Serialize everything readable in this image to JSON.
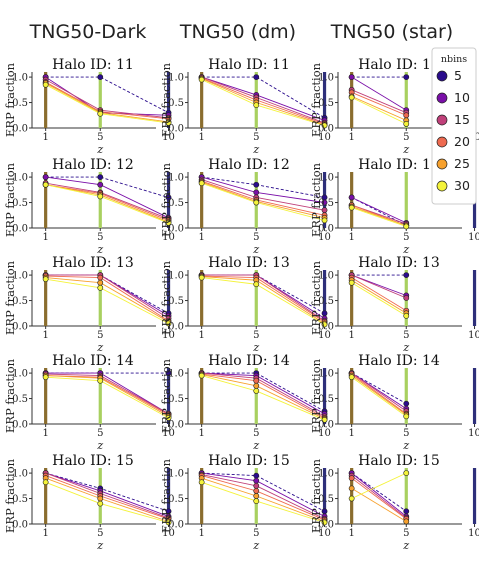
{
  "chart_data": {
    "type": "line",
    "columns": [
      "TNG50-Dark",
      "TNG50 (dm)",
      "TNG50 (star)"
    ],
    "rows": [
      "Halo ID: 11",
      "Halo ID: 12",
      "Halo ID: 13",
      "Halo ID: 14",
      "Halo ID: 15"
    ],
    "xlabel": "z",
    "ylabel": "ERP fraction",
    "xlim": [
      0,
      10.4
    ],
    "ylim": [
      0,
      1.1
    ],
    "xticks": [
      1,
      5,
      10
    ],
    "yticks": [
      0.0,
      0.5,
      1.0
    ],
    "vlines": [
      {
        "x": 1,
        "color": "#8a6d2e"
      },
      {
        "x": 5,
        "color": "#a8d060"
      },
      {
        "x": 10,
        "color": "#2e2f7a"
      }
    ],
    "legend": {
      "title": "nbins",
      "position": "right",
      "entries": [
        {
          "label": "5",
          "color": "#2a0c8c"
        },
        {
          "label": "10",
          "color": "#7a0fa8"
        },
        {
          "label": "15",
          "color": "#c0407a"
        },
        {
          "label": "20",
          "color": "#ee6a50"
        },
        {
          "label": "25",
          "color": "#f7a12e"
        },
        {
          "label": "30",
          "color": "#f4f33a"
        }
      ]
    },
    "panels": [
      [
        {
          "x": [
            1,
            5,
            10
          ],
          "series": [
            [
              1.0,
              1.0,
              0.3
            ],
            [
              1.0,
              0.3,
              0.25
            ],
            [
              0.95,
              0.35,
              0.2
            ],
            [
              0.9,
              0.32,
              0.18
            ],
            [
              0.88,
              0.3,
              0.12
            ],
            [
              0.85,
              0.28,
              0.1
            ]
          ]
        },
        {
          "x": [
            1,
            5,
            10
          ],
          "series": [
            [
              1.0,
              1.0,
              0.2
            ],
            [
              1.0,
              0.65,
              0.15
            ],
            [
              1.0,
              0.6,
              0.1
            ],
            [
              0.98,
              0.55,
              0.08
            ],
            [
              0.97,
              0.5,
              0.06
            ],
            [
              0.95,
              0.45,
              0.05
            ]
          ]
        },
        {
          "x": [
            1,
            5
          ],
          "series": [
            [
              1.0,
              1.0
            ],
            [
              1.0,
              0.35
            ],
            [
              0.75,
              0.3
            ],
            [
              0.7,
              0.25
            ],
            [
              0.62,
              0.15
            ],
            [
              0.6,
              0.08
            ]
          ]
        }
      ],
      [
        {
          "x": [
            1,
            5,
            10
          ],
          "series": [
            [
              1.0,
              1.0,
              0.6
            ],
            [
              1.0,
              0.85,
              0.2
            ],
            [
              0.88,
              0.7,
              0.18
            ],
            [
              0.85,
              0.68,
              0.15
            ],
            [
              0.85,
              0.65,
              0.12
            ],
            [
              0.85,
              0.62,
              0.1
            ]
          ]
        },
        {
          "x": [
            1,
            5,
            10
          ],
          "series": [
            [
              1.0,
              0.85,
              0.6
            ],
            [
              1.0,
              0.7,
              0.5
            ],
            [
              0.95,
              0.6,
              0.35
            ],
            [
              0.92,
              0.55,
              0.25
            ],
            [
              0.9,
              0.52,
              0.2
            ],
            [
              0.88,
              0.5,
              0.15
            ]
          ]
        },
        {
          "x": [
            1,
            5
          ],
          "series": [
            [
              0.6,
              0.05
            ],
            [
              0.6,
              0.1
            ],
            [
              0.45,
              0.08
            ],
            [
              0.45,
              0.05
            ],
            [
              0.42,
              0.05
            ],
            [
              0.4,
              0.03
            ]
          ]
        }
      ],
      [
        {
          "x": [
            1,
            5,
            10
          ],
          "series": [
            [
              1.0,
              1.0,
              0.25
            ],
            [
              1.0,
              1.0,
              0.2
            ],
            [
              1.0,
              1.0,
              0.15
            ],
            [
              0.98,
              0.95,
              0.1
            ],
            [
              0.95,
              0.85,
              0.08
            ],
            [
              0.92,
              0.75,
              0.05
            ]
          ]
        },
        {
          "x": [
            1,
            5,
            10
          ],
          "series": [
            [
              1.0,
              1.0,
              0.25
            ],
            [
              1.0,
              1.0,
              0.15
            ],
            [
              1.0,
              1.0,
              0.1
            ],
            [
              0.98,
              0.95,
              0.08
            ],
            [
              0.97,
              0.9,
              0.05
            ],
            [
              0.95,
              0.82,
              0.03
            ]
          ]
        },
        {
          "x": [
            1,
            5
          ],
          "series": [
            [
              1.0,
              1.0
            ],
            [
              1.0,
              0.6
            ],
            [
              1.0,
              0.55
            ],
            [
              0.95,
              0.3
            ],
            [
              0.9,
              0.25
            ],
            [
              0.85,
              0.2
            ]
          ]
        }
      ],
      [
        {
          "x": [
            1,
            5,
            10
          ],
          "series": [
            [
              1.0,
              1.0,
              1.0
            ],
            [
              1.0,
              1.0,
              0.2
            ],
            [
              0.98,
              0.95,
              0.2
            ],
            [
              0.95,
              0.92,
              0.18
            ],
            [
              0.95,
              0.9,
              0.15
            ],
            [
              0.92,
              0.85,
              0.12
            ]
          ]
        },
        {
          "x": [
            1,
            5,
            10
          ],
          "series": [
            [
              1.0,
              1.0,
              0.25
            ],
            [
              1.0,
              0.95,
              0.2
            ],
            [
              1.0,
              0.9,
              0.15
            ],
            [
              0.98,
              0.85,
              0.12
            ],
            [
              0.97,
              0.75,
              0.1
            ],
            [
              0.95,
              0.65,
              0.08
            ]
          ]
        },
        {
          "x": [
            1,
            5
          ],
          "series": [
            [
              1.0,
              0.4
            ],
            [
              1.0,
              0.3
            ],
            [
              1.0,
              0.25
            ],
            [
              0.98,
              0.2
            ],
            [
              0.95,
              0.18
            ],
            [
              0.92,
              0.15
            ]
          ]
        }
      ],
      [
        {
          "x": [
            1,
            5,
            10
          ],
          "series": [
            [
              1.0,
              0.7,
              0.25
            ],
            [
              1.0,
              0.65,
              0.15
            ],
            [
              1.0,
              0.6,
              0.12
            ],
            [
              0.95,
              0.55,
              0.1
            ],
            [
              0.9,
              0.5,
              0.05
            ],
            [
              0.82,
              0.4,
              0.03
            ]
          ]
        },
        {
          "x": [
            1,
            5,
            10
          ],
          "series": [
            [
              1.0,
              0.95,
              0.25
            ],
            [
              1.0,
              0.85,
              0.15
            ],
            [
              0.97,
              0.75,
              0.1
            ],
            [
              0.95,
              0.65,
              0.08
            ],
            [
              0.9,
              0.55,
              0.05
            ],
            [
              0.82,
              0.45,
              0.03
            ]
          ]
        },
        {
          "x": [
            1,
            5
          ],
          "series": [
            [
              1.0,
              0.25
            ],
            [
              1.0,
              0.15
            ],
            [
              0.95,
              0.12
            ],
            [
              0.9,
              0.1
            ],
            [
              0.7,
              0.05
            ],
            [
              0.5,
              1.0
            ]
          ]
        }
      ]
    ]
  }
}
